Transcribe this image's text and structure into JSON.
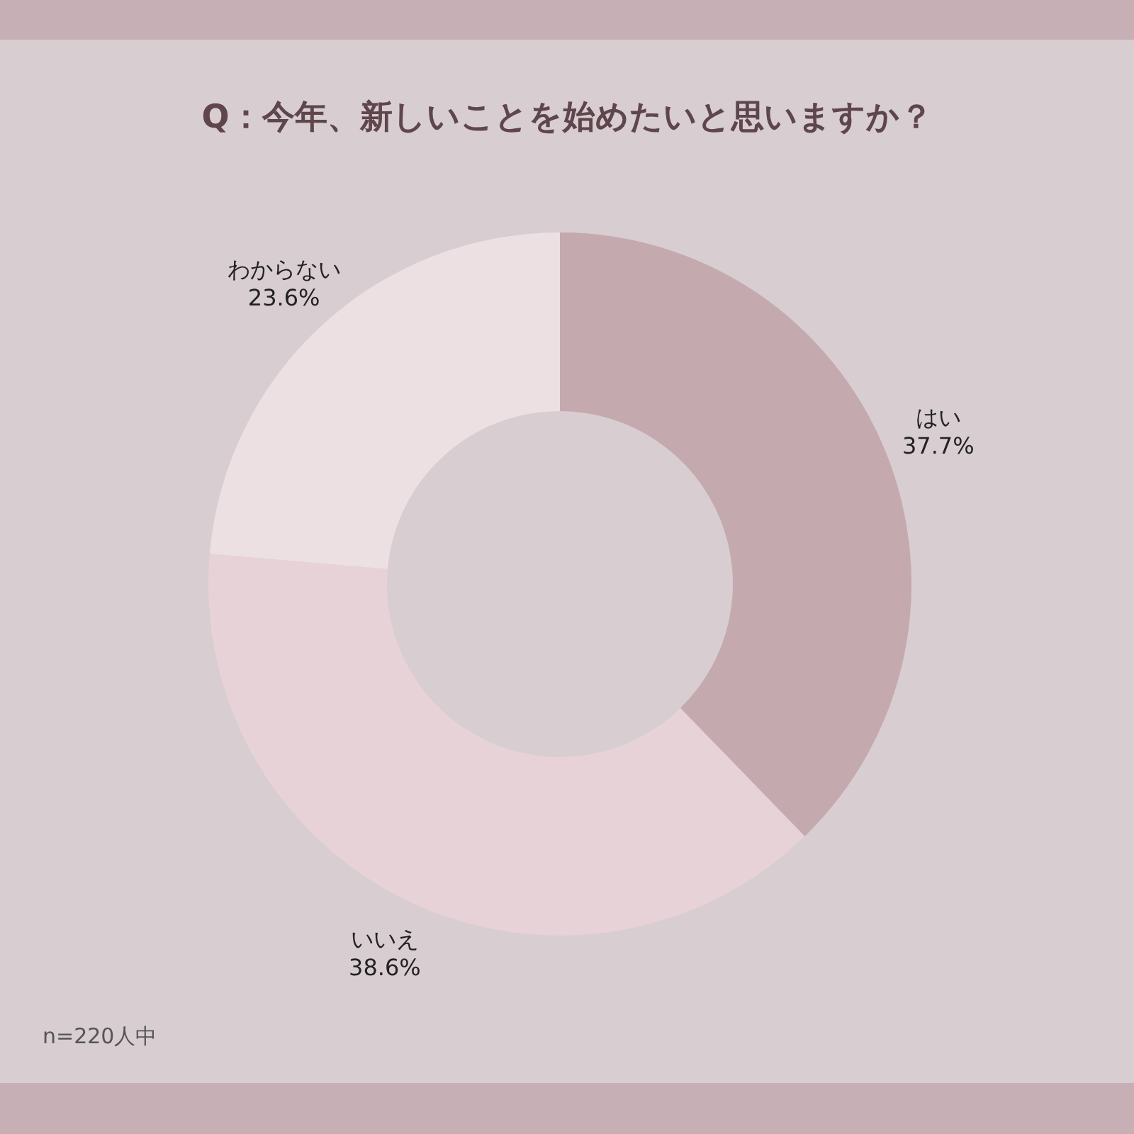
{
  "chart_data": {
    "type": "donut",
    "title": "Q：今年、新しいことを始めたいと思いますか？",
    "categories": [
      "はい",
      "いいえ",
      "わからない"
    ],
    "values": [
      37.7,
      38.6,
      23.6
    ],
    "value_labels": [
      "37.7%",
      "38.6%",
      "23.6%"
    ],
    "colors": [
      "#c4a9ae",
      "#e6d2d7",
      "#ede0e3"
    ],
    "annotations": [
      "n=220人中"
    ]
  }
}
